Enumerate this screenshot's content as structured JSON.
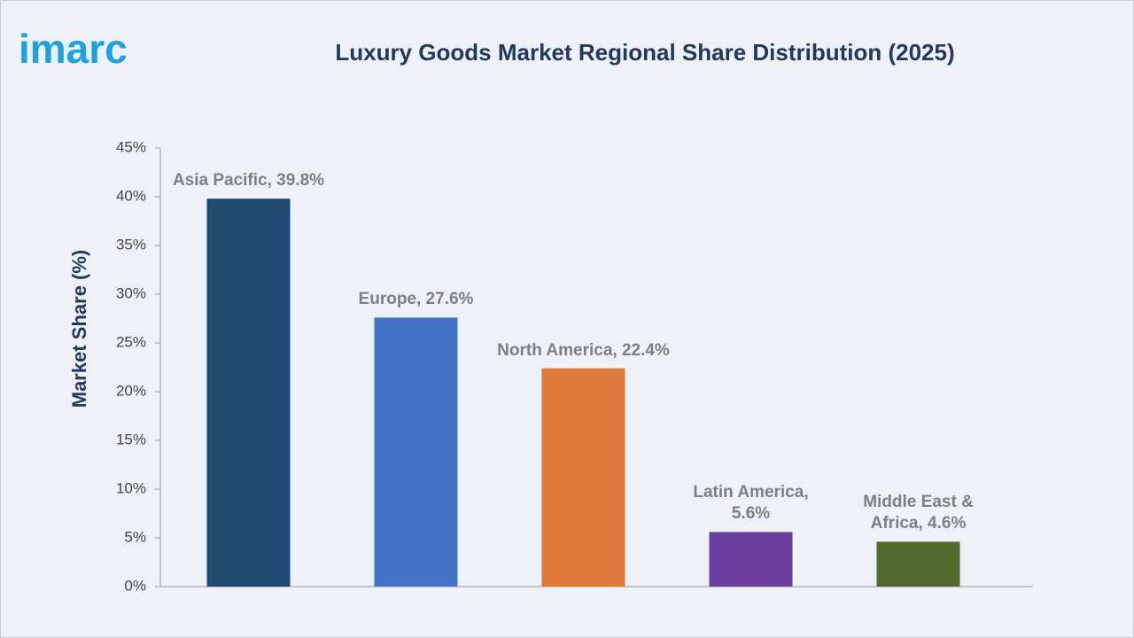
{
  "logo": "imarc",
  "chart_data": {
    "type": "bar",
    "title": "Luxury Goods Market Regional Share Distribution (2025)",
    "y_label": "Market Share (%)",
    "values": [
      39.8,
      27.6,
      22.4,
      5.6,
      4.6
    ],
    "value_labels": [
      "Asia Pacific, 39.8%",
      "Europe, 27.6%",
      "North America, 22.4%",
      "Latin America, 5.6%",
      "Middle East & Africa, 4.6%"
    ],
    "colors": [
      "#1f4b73",
      "#4472c4",
      "#e07a3a",
      "#6b3d9e",
      "#536a2f"
    ],
    "ylim": [
      0,
      45
    ],
    "yticks": [
      {
        "value": 0,
        "label": "0%"
      },
      {
        "value": 5,
        "label": "5%"
      },
      {
        "value": 10,
        "label": "10%"
      },
      {
        "value": 15,
        "label": "15%"
      },
      {
        "value": 20,
        "label": "20%"
      },
      {
        "value": 25,
        "label": "25%"
      },
      {
        "value": 30,
        "label": "30%"
      },
      {
        "value": 35,
        "label": "35%"
      },
      {
        "value": 40,
        "label": "40%"
      },
      {
        "value": 45,
        "label": "45%"
      }
    ],
    "grid": false
  }
}
